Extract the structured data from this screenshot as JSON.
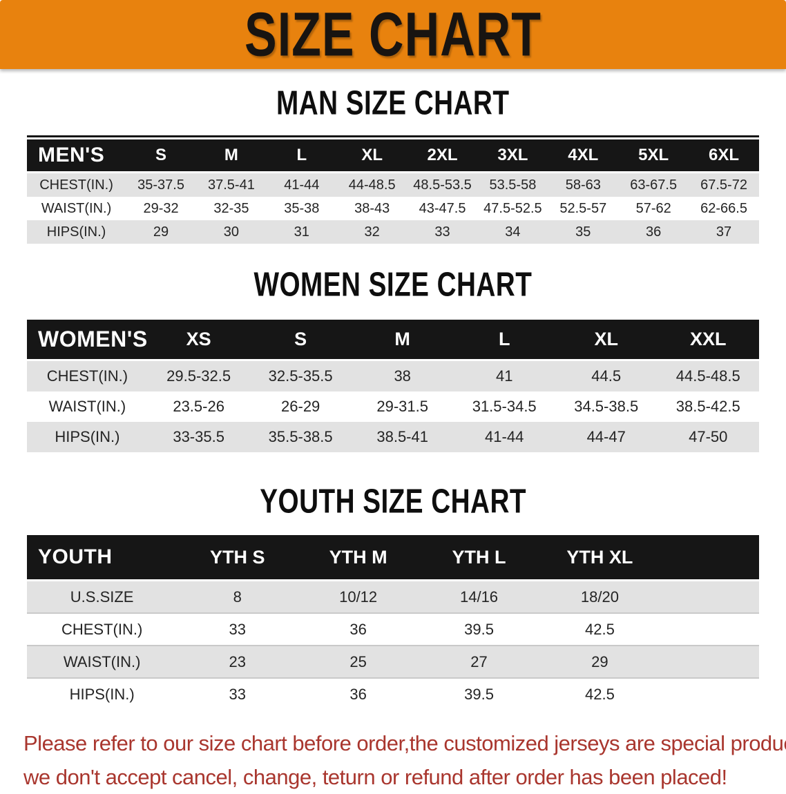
{
  "banner": {
    "title": "SIZE CHART",
    "bg_color": "#E8820E",
    "text_color": "#181411"
  },
  "sections": [
    {
      "id": "men",
      "heading": "MAN SIZE CHART",
      "header": [
        "MEN'S",
        "S",
        "M",
        "L",
        "XL",
        "2XL",
        "3XL",
        "4XL",
        "5XL",
        "6XL"
      ],
      "rows": [
        [
          "CHEST(IN.)",
          "35-37.5",
          "37.5-41",
          "41-44",
          "44-48.5",
          "48.5-53.5",
          "53.5-58",
          "58-63",
          "63-67.5",
          "67.5-72"
        ],
        [
          "WAIST(IN.)",
          "29-32",
          "32-35",
          "35-38",
          "38-43",
          "43-47.5",
          "47.5-52.5",
          "52.5-57",
          "57-62",
          "62-66.5"
        ],
        [
          "HIPS(IN.)",
          "29",
          "30",
          "31",
          "32",
          "33",
          "34",
          "35",
          "36",
          "37"
        ]
      ]
    },
    {
      "id": "women",
      "heading": "WOMEN SIZE CHART",
      "header": [
        "WOMEN'S",
        "XS",
        "S",
        "M",
        "L",
        "XL",
        "XXL"
      ],
      "rows": [
        [
          "CHEST(IN.)",
          "29.5-32.5",
          "32.5-35.5",
          "38",
          "41",
          "44.5",
          "44.5-48.5"
        ],
        [
          "WAIST(IN.)",
          "23.5-26",
          "26-29",
          "29-31.5",
          "31.5-34.5",
          "34.5-38.5",
          "38.5-42.5"
        ],
        [
          "HIPS(IN.)",
          "33-35.5",
          "35.5-38.5",
          "38.5-41",
          "41-44",
          "44-47",
          "47-50"
        ]
      ]
    },
    {
      "id": "youth",
      "heading": "YOUTH SIZE CHART",
      "header": [
        "YOUTH",
        "YTH S",
        "YTH M",
        "YTH L",
        "YTH XL"
      ],
      "rows": [
        [
          "U.S.SIZE",
          "8",
          "10/12",
          "14/16",
          "18/20"
        ],
        [
          "CHEST(IN.)",
          "33",
          "36",
          "39.5",
          "42.5"
        ],
        [
          "WAIST(IN.)",
          "23",
          "25",
          "27",
          "29"
        ],
        [
          "HIPS(IN.)",
          "33",
          "36",
          "39.5",
          "42.5"
        ]
      ]
    }
  ],
  "disclaimer": {
    "lines": [
      "Please refer to our size chart before order,the customized jerseys are special products,",
      "we don't accept cancel, change, teturn or refund after order has been placed!"
    ],
    "color": "#A9362E"
  },
  "colors": {
    "banner_orange": "#E8820E",
    "table_header_black": "#161616",
    "row_gray": "#E2E2E2",
    "row_white": "#FFFFFF",
    "data_text": "#242424",
    "disclaimer_red": "#A9362E"
  }
}
